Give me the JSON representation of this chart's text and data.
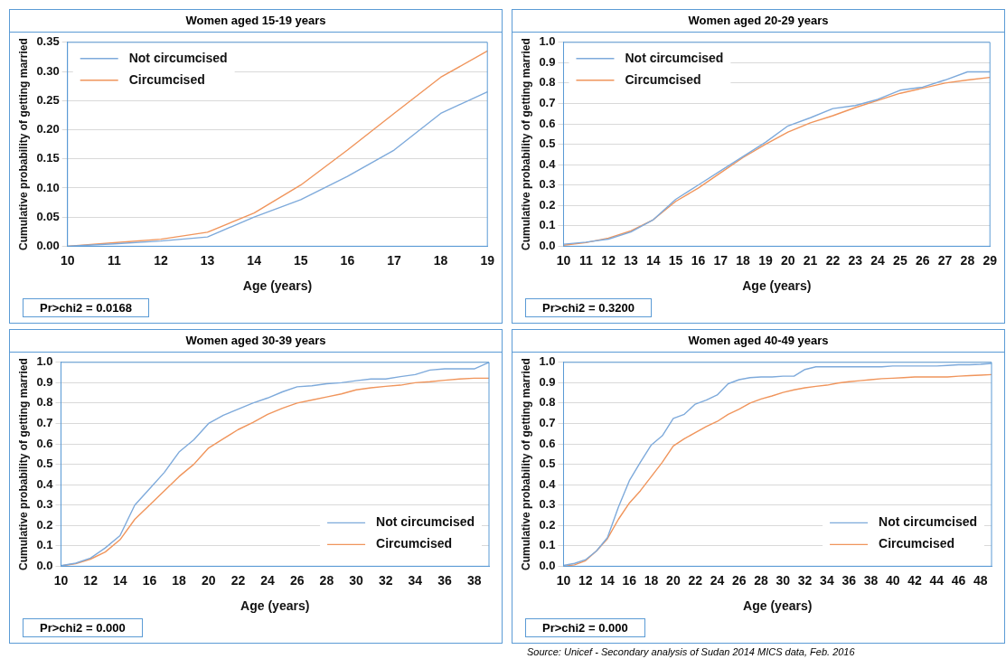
{
  "chart_data": [
    {
      "type": "line",
      "title": "Women aged 15-19 years",
      "xlabel": "Age (years)",
      "ylabel": "Cumulative probability of getting married",
      "categories": [
        "10",
        "11",
        "12",
        "13",
        "14",
        "15",
        "16",
        "17",
        "18",
        "19"
      ],
      "series": [
        {
          "name": "Not circumcised",
          "color": "#7eaadb",
          "values": [
            0,
            0.004,
            0.009,
            0.016,
            0.05,
            0.08,
            0.12,
            0.165,
            0.228,
            0.265
          ]
        },
        {
          "name": "Circumcised",
          "color": "#f0955c",
          "values": [
            0,
            0.006,
            0.012,
            0.024,
            0.057,
            0.105,
            0.165,
            0.228,
            0.29,
            0.335
          ]
        }
      ],
      "ylim": [
        0,
        0.35
      ],
      "yticks": [
        {
          "value": 0,
          "label": "0.00"
        },
        0.05,
        {
          "value": 0.1,
          "label": "0.10"
        },
        0.15,
        {
          "value": 0.2,
          "label": "0.20"
        },
        0.25,
        {
          "value": 0.3,
          "label": "0.30"
        },
        0.35
      ],
      "grid": "y",
      "legend": "top left",
      "marker": "none",
      "line_style": "solid",
      "annotations": [
        "Pr>chi2 = 0.0168"
      ]
    },
    {
      "type": "line",
      "title": "Women aged 20-29 years",
      "xlabel": "Age (years)",
      "ylabel": "Cumulative probability of getting married",
      "categories": [
        "10",
        "11",
        "12",
        "13",
        "14",
        "15",
        "16",
        "17",
        "18",
        "19",
        "20",
        "21",
        "22",
        "23",
        "24",
        "25",
        "26",
        "27",
        "28",
        "29"
      ],
      "series": [
        {
          "name": "Not circumcised",
          "color": "#7eaadb",
          "values": [
            0.01,
            0.02,
            0.035,
            0.07,
            0.13,
            0.23,
            0.3,
            0.37,
            0.44,
            0.51,
            0.59,
            0.63,
            0.675,
            0.69,
            0.72,
            0.765,
            0.78,
            0.815,
            0.855,
            0.855
          ]
        },
        {
          "name": "Circumcised",
          "color": "#f0955c",
          "values": [
            0.005,
            0.018,
            0.04,
            0.075,
            0.13,
            0.22,
            0.285,
            0.36,
            0.435,
            0.5,
            0.56,
            0.605,
            0.64,
            0.68,
            0.715,
            0.75,
            0.775,
            0.8,
            0.815,
            0.828
          ]
        }
      ],
      "ylim": [
        0,
        1
      ],
      "yticks": [
        {
          "value": 0,
          "label": "0.0"
        },
        0.1,
        0.2,
        0.3,
        0.4,
        0.5,
        0.6,
        0.7,
        0.8,
        0.9,
        {
          "value": 1,
          "label": "1.0"
        }
      ],
      "grid": "y",
      "legend": "top left",
      "marker": "none",
      "line_style": "solid",
      "annotations": [
        "Pr>chi2 = 0.3200"
      ]
    },
    {
      "type": "line",
      "title": "Women aged 30-39 years",
      "xlabel": "Age (years)",
      "ylabel": "Cumulative probability of getting married",
      "categories": [
        "10",
        null,
        "12",
        null,
        "14",
        null,
        "16",
        null,
        "18",
        null,
        "20",
        null,
        "22",
        null,
        "24",
        null,
        "26",
        null,
        "28",
        null,
        "30",
        null,
        "32",
        null,
        "34",
        null,
        "36",
        null,
        "38",
        null
      ],
      "series": [
        {
          "name": "Not circumcised",
          "color": "#7eaadb",
          "values": [
            0.003,
            0.015,
            0.04,
            0.09,
            0.15,
            0.3,
            0.38,
            0.46,
            0.56,
            0.62,
            0.7,
            0.74,
            0.77,
            0.8,
            0.825,
            0.855,
            0.88,
            0.885,
            0.895,
            0.9,
            0.91,
            0.918,
            0.918,
            0.93,
            0.94,
            0.962,
            0.968,
            0.968,
            0.968,
            1.0
          ]
        },
        {
          "name": "Circumcised",
          "color": "#f0955c",
          "values": [
            0.002,
            0.013,
            0.035,
            0.07,
            0.13,
            0.23,
            0.3,
            0.37,
            0.44,
            0.5,
            0.58,
            0.625,
            0.67,
            0.705,
            0.745,
            0.775,
            0.8,
            0.815,
            0.83,
            0.845,
            0.865,
            0.875,
            0.882,
            0.888,
            0.9,
            0.905,
            0.912,
            0.918,
            0.922,
            0.922
          ]
        }
      ],
      "ylim": [
        0,
        1
      ],
      "yticks": [
        {
          "value": 0,
          "label": "0.0"
        },
        0.1,
        0.2,
        0.3,
        0.4,
        0.5,
        0.6,
        0.7,
        0.8,
        0.9,
        {
          "value": 1,
          "label": "1.0"
        }
      ],
      "grid": "y",
      "legend": "bottom right",
      "marker": "none",
      "line_style": "solid",
      "annotations": [
        "Pr>chi2 = 0.000"
      ]
    },
    {
      "type": "line",
      "title": "Women aged 40-49 years",
      "xlabel": "Age (years)",
      "ylabel": "Cumulative probability of getting married",
      "categories": [
        "10",
        null,
        "12",
        null,
        "14",
        null,
        "16",
        null,
        "18",
        null,
        "20",
        null,
        "22",
        null,
        "24",
        null,
        "26",
        null,
        "28",
        null,
        "30",
        null,
        "32",
        null,
        "34",
        null,
        "36",
        null,
        "38",
        null,
        "40",
        null,
        "42",
        null,
        "44",
        null,
        "46",
        null,
        "48",
        null
      ],
      "series": [
        {
          "name": "Not circumcised",
          "color": "#7eaadb",
          "values": [
            0.004,
            0.014,
            0.032,
            0.075,
            0.14,
            0.29,
            0.42,
            0.51,
            0.595,
            0.64,
            0.725,
            0.745,
            0.795,
            0.815,
            0.84,
            0.895,
            0.915,
            0.925,
            0.928,
            0.928,
            0.932,
            0.932,
            0.965,
            0.978,
            0.978,
            0.978,
            0.978,
            0.978,
            0.978,
            0.978,
            0.982,
            0.982,
            0.982,
            0.982,
            0.982,
            0.985,
            0.988,
            0.988,
            0.99,
            0.995
          ]
        },
        {
          "name": "Circumcised",
          "color": "#f0955c",
          "values": [
            0,
            0.007,
            0.027,
            0.075,
            0.135,
            0.23,
            0.31,
            0.37,
            0.44,
            0.51,
            0.59,
            0.625,
            0.655,
            0.685,
            0.71,
            0.745,
            0.77,
            0.8,
            0.82,
            0.835,
            0.852,
            0.865,
            0.875,
            0.882,
            0.888,
            0.898,
            0.905,
            0.91,
            0.915,
            0.92,
            0.922,
            0.925,
            0.928,
            0.928,
            0.928,
            0.928,
            0.932,
            0.935,
            0.937,
            0.94
          ]
        }
      ],
      "ylim": [
        0,
        1
      ],
      "yticks": [
        {
          "value": 0,
          "label": "0.0"
        },
        0.1,
        0.2,
        0.3,
        0.4,
        0.5,
        0.6,
        0.7,
        0.8,
        0.9,
        {
          "value": 1,
          "label": "1.0"
        }
      ],
      "grid": "y",
      "legend": "bottom right",
      "marker": "none",
      "line_style": "solid",
      "annotations": [
        "Pr>chi2 = 0.000",
        "Source: Unicef - Secondary analysis of Sudan 2014 MICS data, Feb. 2016"
      ]
    }
  ]
}
